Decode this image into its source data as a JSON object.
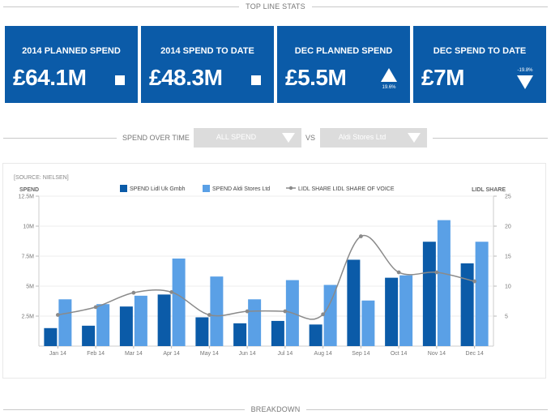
{
  "sections": {
    "top_line_stats": "TOP LINE STATS",
    "breakdown": "BREAKDOWN"
  },
  "kpis": [
    {
      "label": "2014 PLANNED SPEND",
      "value": "£64.1M",
      "indicator": "square"
    },
    {
      "label": "2014 SPEND TO DATE",
      "value": "£48.3M",
      "indicator": "square"
    },
    {
      "label": "DEC PLANNED SPEND",
      "value": "£5.5M",
      "indicator": "triangle-up",
      "change": "19.6%"
    },
    {
      "label": "DEC SPEND TO DATE",
      "value": "£7M",
      "indicator": "triangle-down",
      "change": "-19.8%"
    }
  ],
  "filters": {
    "title": "SPEND OVER TIME",
    "dropdown1": "ALL SPEND",
    "vs": "VS",
    "dropdown2": "Aldi Stores Ltd"
  },
  "colors": {
    "brand_blue": "#0b5ba8",
    "series_dark": "#0b5ba8",
    "series_light": "#5aa0e6",
    "line": "#8a8a8a"
  },
  "chart_data": {
    "type": "bar",
    "source": "[SOURCE: NIELSEN]",
    "ylabel": "SPEND",
    "y2label": "LIDL SHARE",
    "categories": [
      "Jan 14",
      "Feb 14",
      "Mar 14",
      "Apr 14",
      "May 14",
      "Jun 14",
      "Jul 14",
      "Aug 14",
      "Sep 14",
      "Oct 14",
      "Nov 14",
      "Dec 14"
    ],
    "ylim": [
      0,
      12.5
    ],
    "yticks": [
      {
        "v": 2.5,
        "label": "2.5M"
      },
      {
        "v": 5,
        "label": "5M"
      },
      {
        "v": 7.5,
        "label": "7.5M"
      },
      {
        "v": 10,
        "label": "10M"
      },
      {
        "v": 12.5,
        "label": "12.5M"
      }
    ],
    "y2lim": [
      0,
      2.5
    ],
    "y2ticks": [
      {
        "v": 0.5,
        "label": "5"
      },
      {
        "v": 1.0,
        "label": "10"
      },
      {
        "v": 1.5,
        "label": "15"
      },
      {
        "v": 2.0,
        "label": "20"
      },
      {
        "v": 2.5,
        "label": "25"
      }
    ],
    "series": [
      {
        "name": "SPEND Lidl Uk Gmbh",
        "kind": "bar",
        "color": "#0b5ba8",
        "values": [
          1.5,
          1.7,
          3.3,
          4.3,
          2.4,
          1.9,
          2.1,
          1.8,
          7.2,
          5.7,
          8.7,
          6.9
        ]
      },
      {
        "name": "SPEND Aldi Stores Ltd",
        "kind": "bar",
        "color": "#5aa0e6",
        "values": [
          3.9,
          3.5,
          4.2,
          7.3,
          5.8,
          3.9,
          5.5,
          5.1,
          3.8,
          5.9,
          10.5,
          8.7
        ]
      },
      {
        "name": "LIDL SHARE LIDL SHARE OF VOICE",
        "kind": "line",
        "axis": "right",
        "color": "#8a8a8a",
        "values": [
          0.52,
          0.65,
          0.89,
          0.9,
          0.52,
          0.58,
          0.58,
          0.53,
          1.83,
          1.23,
          1.23,
          1.08
        ]
      }
    ]
  }
}
